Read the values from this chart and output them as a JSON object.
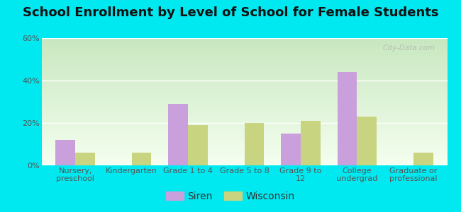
{
  "title": "School Enrollment by Level of School for Female Students",
  "categories": [
    "Nursery,\npreschool",
    "Kindergarten",
    "Grade 1 to 4",
    "Grade 5 to 8",
    "Grade 9 to\n12",
    "College\nundergrad",
    "Graduate or\nprofessional"
  ],
  "siren_values": [
    12,
    0,
    29,
    0,
    15,
    44,
    0
  ],
  "wisconsin_values": [
    6,
    6,
    19,
    20,
    21,
    23,
    6
  ],
  "siren_color": "#c9a0dc",
  "wisconsin_color": "#c8d480",
  "background_color": "#00e8f0",
  "plot_bg": "#e8f5e0",
  "ylim": [
    0,
    60
  ],
  "yticks": [
    0,
    20,
    40,
    60
  ],
  "ytick_labels": [
    "0%",
    "20%",
    "40%",
    "60%"
  ],
  "legend_labels": [
    "Siren",
    "Wisconsin"
  ],
  "title_fontsize": 13,
  "tick_fontsize": 8,
  "legend_fontsize": 10,
  "bar_width": 0.35,
  "watermark": "City-Data.com"
}
